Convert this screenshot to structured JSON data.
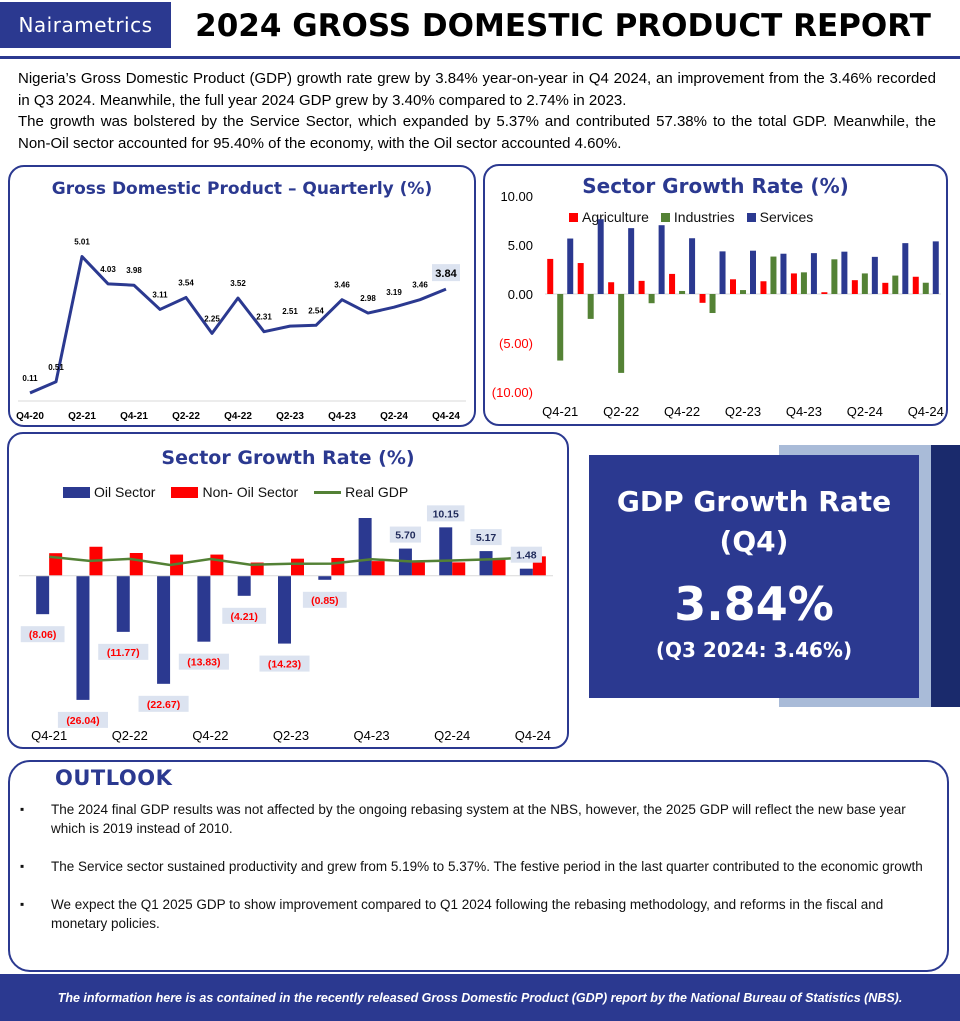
{
  "header": {
    "logo_text": "Nairametrics",
    "title": "2024 GROSS DOMESTIC PRODUCT REPORT"
  },
  "intro": {
    "paragraph1": "Nigeria’s Gross Domestic Product (GDP) growth rate grew by 3.84% year-on-year in Q4 2024, an improvement from the 3.46% recorded in Q3 2024. Meanwhile, the full year 2024 GDP grew by 3.40% compared to 2.74% in 2023.",
    "paragraph2": "The growth was bolstered by the Service Sector, which expanded by 5.37% and contributed 57.38% to the total GDP. Meanwhile, the Non-Oil sector accounted for 95.40% of the economy, with the Oil sector accounted 4.60%."
  },
  "colors": {
    "brand": "#2b3990",
    "oil": "#2b3990",
    "non_oil": "#ff0000",
    "real_gdp": "#538135",
    "agriculture": "#ff0000",
    "industries": "#548235",
    "services": "#2b3990"
  },
  "chart_data": [
    {
      "id": "gdp_quarterly",
      "type": "line",
      "title": "Gross Domestic Product – Quarterly (%)",
      "categories": [
        "Q4-20",
        "Q1-21",
        "Q2-21",
        "Q3-21",
        "Q4-21",
        "Q1-22",
        "Q2-22",
        "Q3-22",
        "Q4-22",
        "Q1-23",
        "Q2-23",
        "Q3-23",
        "Q4-23",
        "Q1-24",
        "Q2-24",
        "Q3-24",
        "Q4-24"
      ],
      "tick_labels": [
        "Q4-20",
        "Q2-21",
        "Q4-21",
        "Q2-22",
        "Q4-22",
        "Q2-23",
        "Q4-23",
        "Q2-24",
        "Q4-24"
      ],
      "values": [
        0.11,
        0.51,
        5.01,
        4.03,
        3.98,
        3.11,
        3.54,
        2.25,
        3.52,
        2.31,
        2.51,
        2.54,
        3.46,
        2.98,
        3.19,
        3.46,
        3.84
      ],
      "value_labels": [
        "0.11",
        "0.51",
        "5.01",
        "4.03",
        "3.98",
        "3.11",
        "3.54",
        "2.25",
        "3.52",
        "2.31",
        "2.51",
        "2.54",
        "3.46",
        "2.98",
        "3.19",
        "3.46",
        "3.84"
      ],
      "highlight_last": true,
      "ylim": [
        0,
        6
      ],
      "grid": false
    },
    {
      "id": "sector_growth_top",
      "type": "bar",
      "title": "Sector Growth Rate (%)",
      "categories": [
        "Q4-21",
        "Q1-22",
        "Q2-22",
        "Q3-22",
        "Q4-22",
        "Q1-23",
        "Q2-23",
        "Q3-23",
        "Q4-23",
        "Q1-24",
        "Q2-24",
        "Q3-24",
        "Q4-24"
      ],
      "tick_labels": [
        "Q4-21",
        "Q2-22",
        "Q4-22",
        "Q2-23",
        "Q4-23",
        "Q2-24",
        "Q4-24"
      ],
      "series": [
        {
          "name": "Agriculture",
          "values": [
            3.58,
            3.16,
            1.2,
            1.34,
            2.05,
            -0.9,
            1.5,
            1.3,
            2.1,
            0.18,
            1.41,
            1.14,
            1.76
          ]
        },
        {
          "name": "Industries",
          "values": [
            -6.79,
            -2.54,
            -8.05,
            -0.94,
            0.31,
            -1.94,
            0.4,
            3.82,
            2.21,
            3.54,
            2.1,
            1.88,
            1.15
          ]
        },
        {
          "name": "Services",
          "values": [
            5.66,
            7.63,
            6.72,
            7.02,
            5.69,
            4.35,
            4.42,
            4.11,
            4.17,
            4.32,
            3.79,
            5.19,
            5.37
          ]
        }
      ],
      "ytick_labels": [
        "10.00",
        "5.00",
        "0.00",
        "(5.00)",
        "(10.00)"
      ],
      "ylim": [
        -10,
        10
      ],
      "legend": "top",
      "grid": false
    },
    {
      "id": "sector_growth_oil",
      "type": "bar",
      "title": "Sector Growth Rate (%)",
      "categories": [
        "Q4-21",
        "Q1-22",
        "Q2-22",
        "Q3-22",
        "Q4-22",
        "Q1-23",
        "Q2-23",
        "Q3-23",
        "Q4-23",
        "Q1-24",
        "Q2-24",
        "Q3-24",
        "Q4-24"
      ],
      "tick_labels": [
        "Q4-21",
        "Q2-22",
        "Q4-22",
        "Q2-23",
        "Q4-23",
        "Q2-24",
        "Q4-24"
      ],
      "series": [
        {
          "name": "Oil Sector",
          "type": "bar",
          "values": [
            -8.06,
            -26.04,
            -11.77,
            -22.67,
            -13.83,
            -4.21,
            -14.23,
            -0.85,
            12.11,
            5.7,
            10.15,
            5.17,
            1.48
          ]
        },
        {
          "name": "Non- Oil Sector",
          "type": "bar",
          "values": [
            4.73,
            6.08,
            4.77,
            4.44,
            4.44,
            2.77,
            3.58,
            3.73,
            3.07,
            2.8,
            2.8,
            3.37,
            4.07
          ]
        },
        {
          "name": "Real GDP",
          "type": "line",
          "values": [
            3.98,
            3.11,
            3.54,
            2.25,
            3.52,
            2.31,
            2.51,
            2.54,
            3.46,
            2.98,
            3.19,
            3.46,
            3.84
          ]
        }
      ],
      "oil_value_labels": [
        "(8.06)",
        "(26.04)",
        "(11.77)",
        "(22.67)",
        "(13.83)",
        "(4.21)",
        "(14.23)",
        "(0.85)",
        "",
        "5.70",
        "10.15",
        "5.17",
        "1.48"
      ],
      "ylim": [
        -29,
        14
      ],
      "legend": "top",
      "grid": false
    }
  ],
  "kpi": {
    "title_line1": "GDP Growth Rate",
    "title_line2": "(Q4)",
    "value": "3.84%",
    "previous": "(Q3 2024: 3.46%)"
  },
  "outlook": {
    "title": "OUTLOOK",
    "items": [
      "The 2024 final GDP results was not affected by the ongoing rebasing system at the NBS, however, the  2025 GDP will reflect the new base year which is 2019 instead of 2010.",
      "The Service sector sustained productivity and grew from 5.19% to 5.37%. The festive period in the last quarter contributed to the economic growth",
      "We expect the Q1 2025 GDP to show improvement  compared to Q1 2024 following the rebasing methodology, and reforms in the fiscal and monetary policies."
    ]
  },
  "footer": {
    "text": "The information here is as contained in the recently released Gross Domestic Product (GDP) report by the National Bureau of Statistics (NBS)."
  }
}
